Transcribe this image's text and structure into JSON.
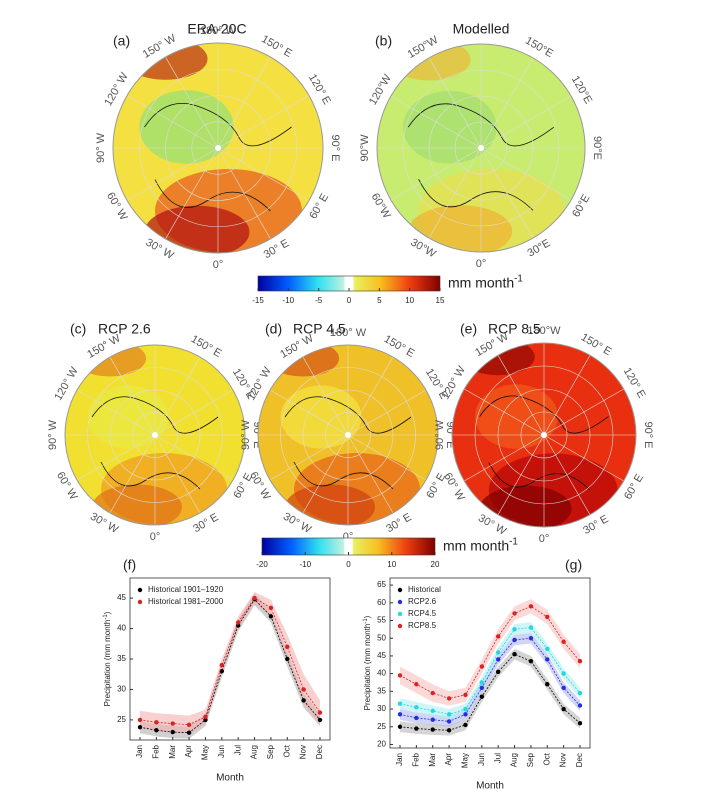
{
  "maps": [
    {
      "panel": "(a)",
      "title": "ERA-20C",
      "labels": [
        "180° W",
        "150° E",
        "120° E",
        "90° E",
        "60° E",
        "30° E",
        "0°",
        "30° W",
        "60° W",
        "90° W",
        "120° W",
        "150° W"
      ],
      "palette": [
        "#f4e040",
        "#9ee070",
        "#e86020",
        "#b01010"
      ]
    },
    {
      "panel": "(b)",
      "title": "Modelled",
      "labels": [
        null,
        "150°E",
        "120°E",
        "90°E",
        "60°E",
        "30°E",
        "0°",
        "30°W",
        "60°W",
        "90°W",
        "120°W",
        "150°W"
      ],
      "palette": [
        "#c8ec70",
        "#a8e070",
        "#e8e050",
        "#f0b030"
      ]
    },
    {
      "panel": "(c)",
      "title": "RCP 2.6",
      "labels": [
        null,
        "150° E",
        "120° E",
        "90° E",
        "60° E",
        "30° E",
        "0°",
        "30° W",
        "60° W",
        "90° W",
        "120° W",
        "150° W"
      ],
      "palette": [
        "#f2e030",
        "#e8e840",
        "#f0a020",
        "#e07018"
      ]
    },
    {
      "panel": "(d)",
      "title": "RCP 4.5",
      "labels": [
        "180° W",
        "150° E",
        "120° E",
        "90° E",
        "60° E",
        "30° E",
        "0°",
        "30° W",
        "60° W",
        "90° W",
        "120° W",
        "150° W"
      ],
      "palette": [
        "#f0c028",
        "#f4e040",
        "#e86818",
        "#d04010"
      ]
    },
    {
      "panel": "(e)",
      "title": "RCP 8.5",
      "labels": [
        "180°W",
        "150° E",
        "120° E",
        "90° E",
        "60° E",
        "30° E",
        "0°",
        "30° W",
        "60° W",
        "90° W",
        "120° W",
        "150° W"
      ],
      "palette": [
        "#e83010",
        "#f05818",
        "#b80808",
        "#800000"
      ]
    }
  ],
  "colorbars": [
    {
      "lim": [
        -15,
        15
      ],
      "ticks": [
        -15,
        -10,
        -5,
        0,
        5,
        10,
        15
      ],
      "unit": "mm month",
      "unit_exp": "-1"
    },
    {
      "lim": [
        -20,
        20
      ],
      "ticks": [
        -20,
        -10,
        0,
        10,
        20
      ],
      "unit": "mm month",
      "unit_exp": "-1"
    }
  ],
  "chart_data": [
    {
      "type": "line",
      "panel": "(f)",
      "xlabel": "Month",
      "ylabel": "Precipitation (mm month",
      "ylabel_exp": "-1",
      "ylabel_end": ")",
      "categories": [
        "Jan",
        "Feb",
        "Mar",
        "Apr",
        "May",
        "Jun",
        "Jul",
        "Aug",
        "Sep",
        "Oct",
        "Nov",
        "Dec"
      ],
      "ylim": [
        21.7,
        48.3
      ],
      "yticks": [
        25,
        30,
        35,
        40,
        45
      ],
      "legend": "upper-left",
      "series": [
        {
          "name": "Historical 1901–1920",
          "color": "#000000",
          "band_color": "#b0b0b0",
          "values": [
            23.8,
            23.3,
            23.0,
            22.9,
            25.0,
            33.0,
            40.5,
            44.8,
            42.0,
            35.0,
            28.2,
            25.0
          ],
          "spread": [
            1,
            1,
            1,
            1,
            1,
            1,
            1,
            1,
            1,
            1.2,
            1.2,
            1
          ]
        },
        {
          "name": "Historical 1981–2000",
          "color": "#dd2020",
          "band_color": "#f4b0b0",
          "values": [
            25.0,
            24.6,
            24.4,
            24.2,
            25.5,
            34.0,
            41.0,
            45.0,
            43.4,
            37.0,
            30.0,
            26.2
          ],
          "spread": [
            1.5,
            1.5,
            1.5,
            1.5,
            1.2,
            1,
            1,
            1,
            1.3,
            2,
            2.5,
            2
          ]
        }
      ]
    },
    {
      "type": "line",
      "panel": "(g)",
      "xlabel": "Month",
      "ylabel": "Precipitation (mm month",
      "ylabel_exp": "-1",
      "ylabel_end": ")",
      "categories": [
        "Jan",
        "Feb",
        "Mar",
        "Apr",
        "May",
        "Jun",
        "Jul",
        "Aug",
        "Sep",
        "Oct",
        "Nov",
        "Dec"
      ],
      "ylim": [
        19,
        67
      ],
      "yticks": [
        20,
        25,
        30,
        35,
        40,
        45,
        50,
        55,
        60,
        65
      ],
      "legend": "upper-left",
      "series": [
        {
          "name": "Historical",
          "color": "#000000",
          "band_color": "#b8b8b8",
          "values": [
            25,
            24.5,
            24.2,
            24,
            25.5,
            33.5,
            40.5,
            45.5,
            43.5,
            37,
            30,
            26
          ],
          "spread": [
            1.5,
            1.5,
            1.5,
            1.5,
            1.5,
            1.5,
            1.5,
            1.5,
            1.5,
            1.5,
            1.5,
            1.5
          ]
        },
        {
          "name": "RCP2.6",
          "color": "#2030e0",
          "band_color": "#b0b8f0",
          "values": [
            28.5,
            27.5,
            27,
            26.5,
            28.5,
            36,
            44,
            49.5,
            50,
            44,
            36,
            31
          ],
          "spread": [
            1.5,
            1.5,
            1.5,
            1.5,
            1.5,
            1.5,
            1.5,
            1.5,
            1.5,
            1.5,
            1.5,
            1.5
          ]
        },
        {
          "name": "RCP4.5",
          "color": "#20d8e0",
          "band_color": "#b0eef0",
          "values": [
            31.5,
            30.5,
            29.5,
            28.5,
            30,
            37.5,
            46,
            52.5,
            53,
            47,
            40,
            34.5
          ],
          "spread": [
            1.5,
            1.5,
            1.5,
            1.5,
            1.5,
            1.5,
            1.5,
            1.5,
            1.5,
            1.5,
            1.5,
            1.5
          ]
        },
        {
          "name": "RCP8.5",
          "color": "#e02020",
          "band_color": "#f6c0c0",
          "values": [
            39.5,
            37,
            34.5,
            33,
            34,
            42,
            50.5,
            57,
            59,
            56,
            49,
            43.5
          ],
          "spread": [
            2.5,
            2.5,
            2.5,
            2,
            2,
            2,
            2,
            2,
            2,
            2,
            2,
            2
          ]
        }
      ]
    }
  ]
}
